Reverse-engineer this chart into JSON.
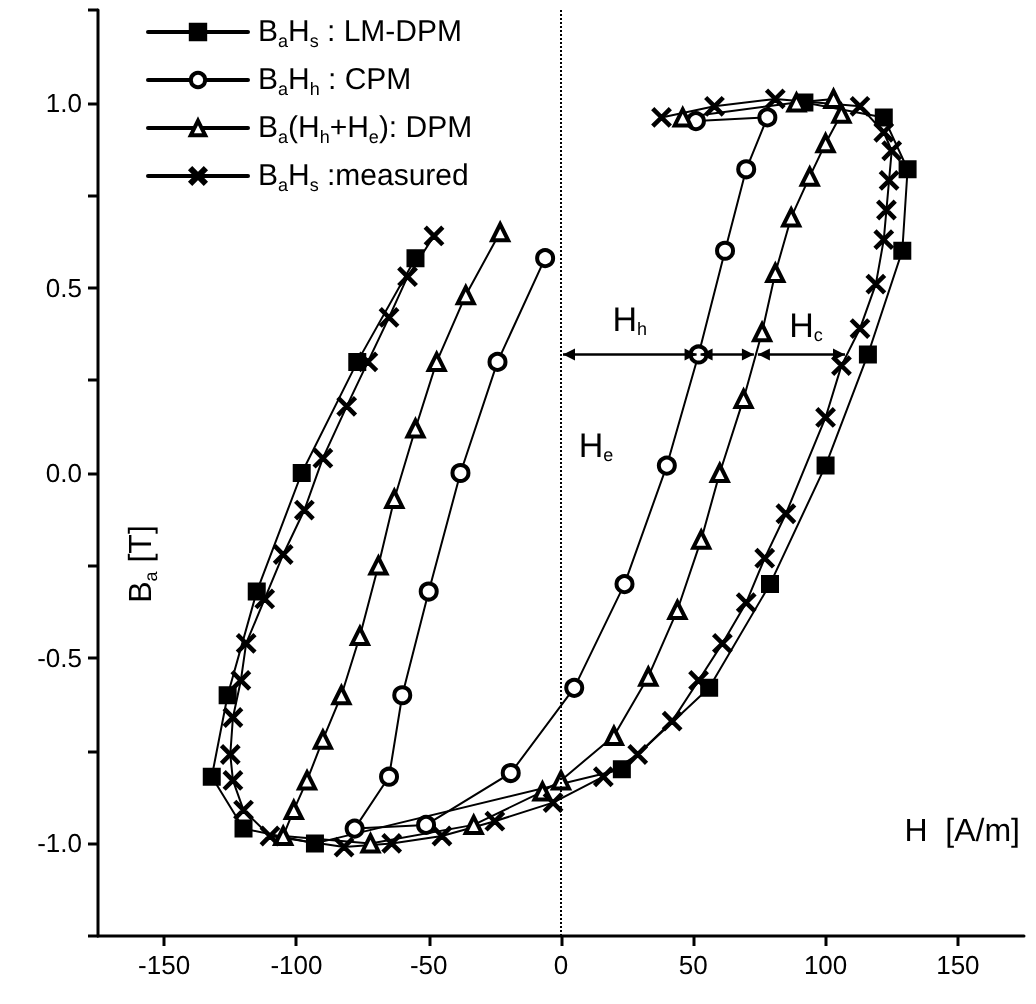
{
  "chart_data": {
    "type": "line",
    "xlabel": "H  [A/m]",
    "ylabel": "B$_{a}$ [T]",
    "xlim": [
      -175,
      175
    ],
    "xticks": [
      -150,
      -100,
      -50,
      0,
      50,
      100,
      150
    ],
    "ylim": [
      -1.25,
      1.25
    ],
    "yticks": [
      {
        "value": -1.25,
        "label": null
      },
      {
        "value": -1,
        "label": "-1.0"
      },
      {
        "value": -0.75,
        "label": null
      },
      {
        "value": -0.5,
        "label": "-0.5"
      },
      {
        "value": -0.25,
        "label": null
      },
      {
        "value": 0,
        "label": "0.0"
      },
      {
        "value": 0.25,
        "label": null
      },
      {
        "value": 0.5,
        "label": "0.5"
      },
      {
        "value": 0.75,
        "label": null
      },
      {
        "value": 1,
        "label": "1.0"
      },
      {
        "value": 1.25,
        "label": null
      }
    ],
    "grid": false,
    "legend": "top left",
    "line_style": "solid",
    "ref_lines": [
      {
        "axis": "x",
        "value": 0,
        "line_style": "dotted"
      }
    ],
    "annotations": [
      {
        "text": "H$_{h}$",
        "x": 52,
        "y": 0.32
      },
      "H$_{c}$",
      "H$_{e}$"
    ],
    "series": [
      {
        "name": "B$_{a}$H$_{s}$ : LM-DPM",
        "color": "#000000",
        "marker": "square",
        "x": [
          -55,
          -77,
          -98,
          -115,
          -126,
          -132,
          -120,
          -93,
          23,
          56,
          79,
          100,
          116,
          129,
          131,
          122,
          92
        ],
        "values": [
          0.58,
          0.3,
          0.0,
          -0.32,
          -0.6,
          -0.82,
          -0.96,
          -1.0,
          -0.8,
          -0.58,
          -0.3,
          0.02,
          0.32,
          0.6,
          0.82,
          0.96,
          1.0
        ]
      },
      {
        "name": "B$_{a}$H$_{h}$ : CPM",
        "color": "#000000",
        "marker": "circle",
        "x": [
          -6,
          -24,
          -38,
          -50,
          -60,
          -65,
          -78,
          -51,
          -19,
          5,
          24,
          40,
          52,
          62,
          70,
          78,
          51
        ],
        "values": [
          0.58,
          0.3,
          0.0,
          -0.32,
          -0.6,
          -0.82,
          -0.96,
          -0.95,
          -0.81,
          -0.58,
          -0.3,
          0.02,
          0.32,
          0.6,
          0.82,
          0.96,
          0.95
        ]
      },
      {
        "name": "B$_{a}$(H$_{h}$+H$_{e}$): DPM",
        "color": "#000000",
        "marker": "triangle",
        "x": [
          -23,
          -36,
          -47,
          -55,
          -63,
          -69,
          -76,
          -83,
          -90,
          -96,
          -101,
          -105,
          -72,
          -33,
          -7,
          0,
          20,
          33,
          44,
          53,
          60,
          69,
          76,
          81,
          87,
          94,
          100,
          106,
          103,
          89,
          46
        ],
        "values": [
          0.65,
          0.48,
          0.3,
          0.12,
          -0.07,
          -0.25,
          -0.44,
          -0.6,
          -0.72,
          -0.83,
          -0.91,
          -0.98,
          -1.0,
          -0.95,
          -0.86,
          -0.83,
          -0.71,
          -0.55,
          -0.37,
          -0.18,
          0.0,
          0.2,
          0.38,
          0.54,
          0.69,
          0.8,
          0.89,
          0.97,
          1.01,
          1.0,
          0.96
        ]
      },
      {
        "name": "B$_{a}$H$_{s}$ :measured",
        "color": "#000000",
        "marker": "cross",
        "x": [
          -48,
          -58,
          -65,
          -73,
          -81,
          -90,
          -97,
          -105,
          -112,
          -119,
          -121,
          -124,
          -125,
          -124,
          -120,
          -110,
          -82,
          -64,
          -45,
          -25,
          -3,
          16,
          29,
          42,
          52,
          61,
          70,
          77,
          85,
          100,
          106,
          113,
          119,
          122,
          123,
          124,
          125,
          122,
          113,
          81,
          58,
          38
        ],
        "values": [
          0.64,
          0.53,
          0.42,
          0.3,
          0.18,
          0.04,
          -0.1,
          -0.22,
          -0.34,
          -0.46,
          -0.56,
          -0.66,
          -0.76,
          -0.83,
          -0.91,
          -0.98,
          -1.01,
          -1.0,
          -0.98,
          -0.94,
          -0.89,
          -0.82,
          -0.76,
          -0.67,
          -0.56,
          -0.46,
          -0.35,
          -0.23,
          -0.11,
          0.15,
          0.29,
          0.39,
          0.51,
          0.63,
          0.71,
          0.79,
          0.87,
          0.92,
          0.99,
          1.01,
          0.99,
          0.96
        ]
      }
    ]
  }
}
